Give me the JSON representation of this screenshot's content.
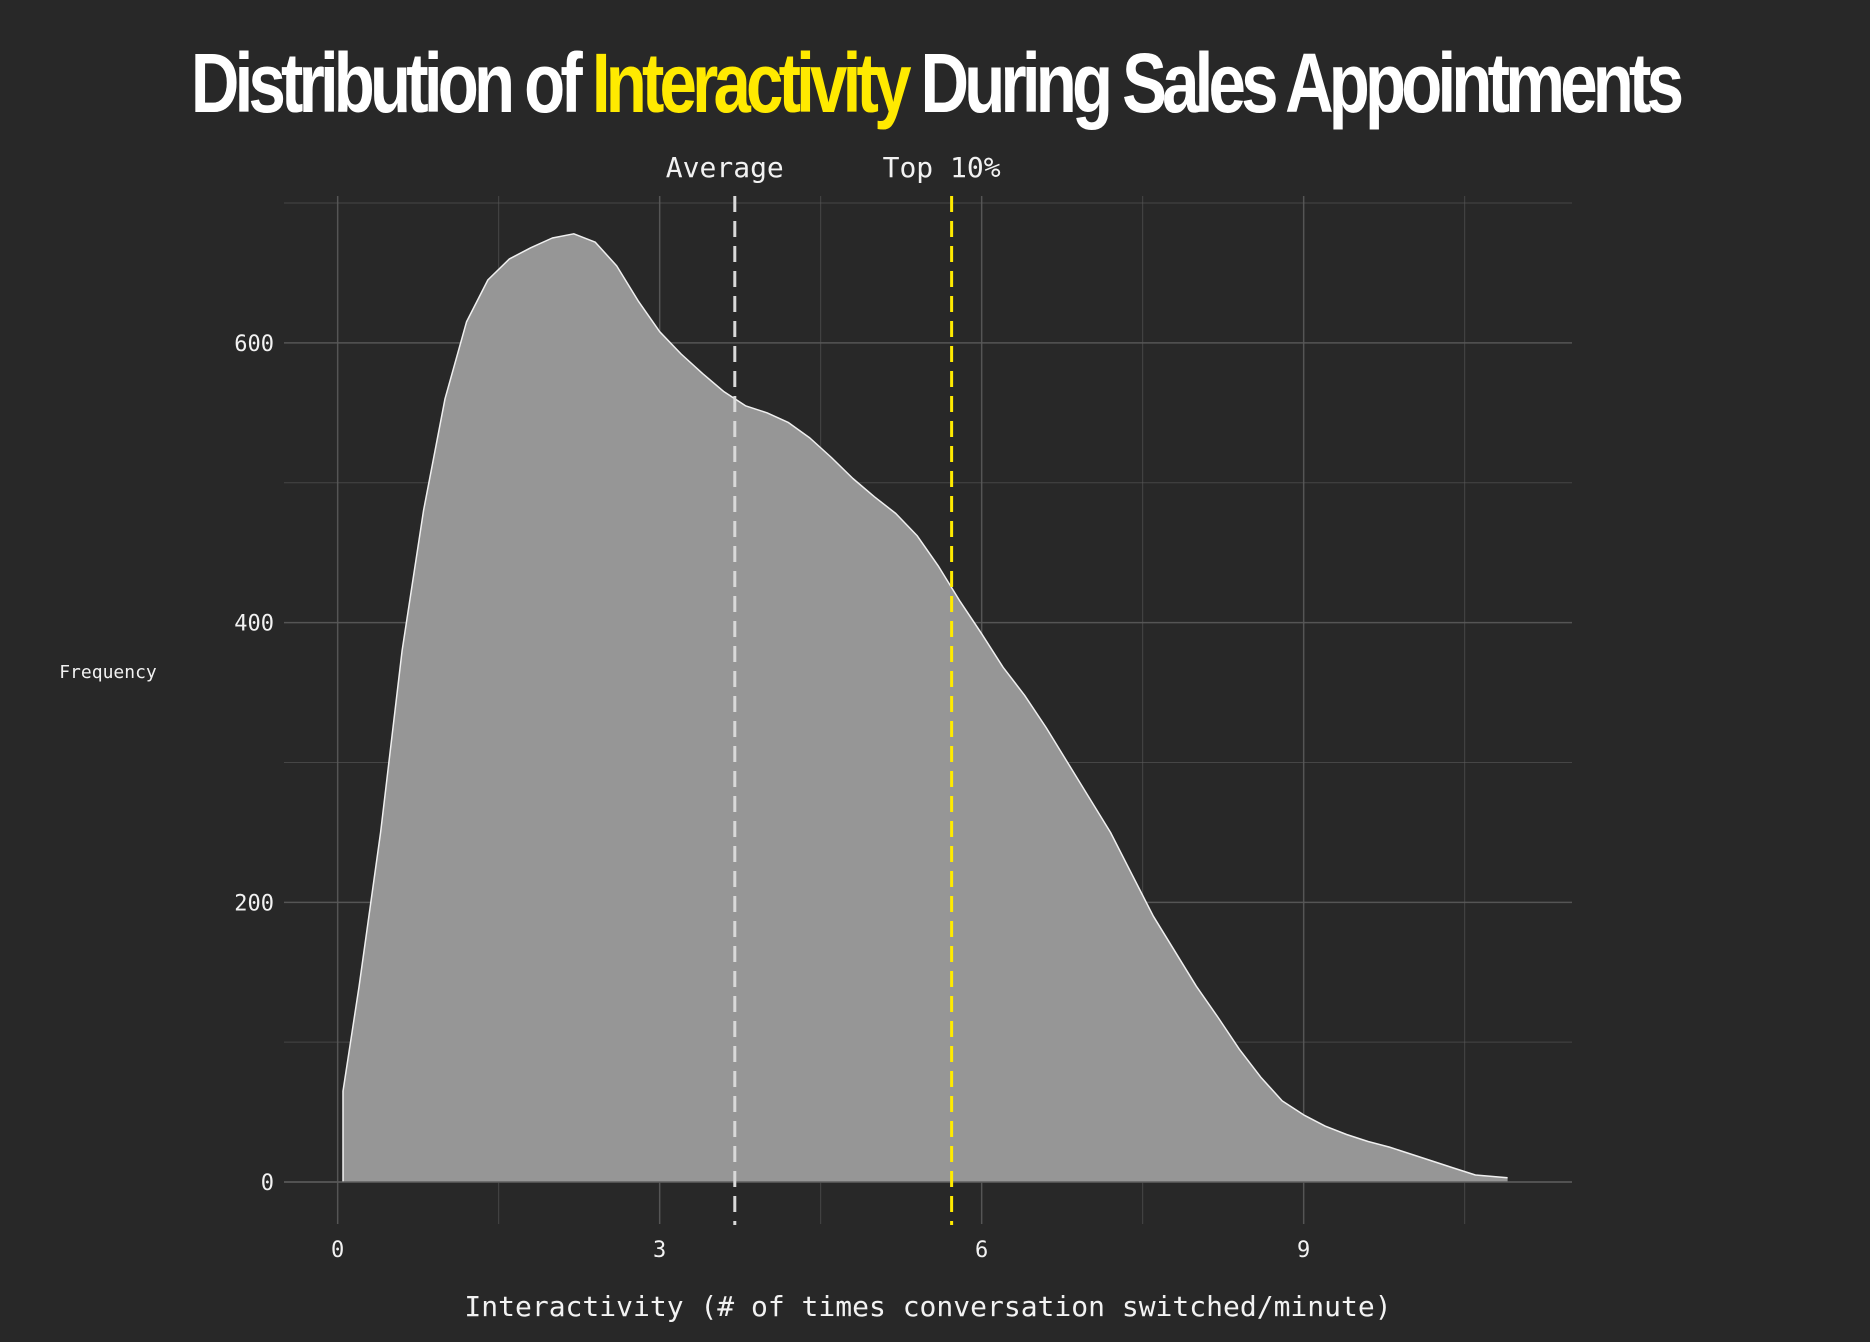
{
  "title": {
    "part1": "Distribution of ",
    "highlight": "Interactivity",
    "part2": " During Sales Appointments"
  },
  "colors": {
    "background": "#282828",
    "highlight": "#ffea00",
    "fill": "#969696",
    "outline": "#f0f0f0",
    "average_line": "#d9d9d9",
    "grid": "#5a5a5a"
  },
  "chart_data": {
    "type": "area",
    "xlabel": "Interactivity (# of times conversation switched/minute)",
    "ylabel": "Frequency",
    "xlim": [
      -0.5,
      11.5
    ],
    "ylim": [
      -30,
      705
    ],
    "xticks": [
      0,
      3,
      6,
      9
    ],
    "yticks": [
      0,
      200,
      400,
      600
    ],
    "grid": true,
    "x": [
      0.05,
      0.2,
      0.4,
      0.6,
      0.8,
      1.0,
      1.2,
      1.4,
      1.6,
      1.8,
      2.0,
      2.2,
      2.4,
      2.6,
      2.8,
      3.0,
      3.2,
      3.4,
      3.6,
      3.8,
      4.0,
      4.2,
      4.4,
      4.6,
      4.8,
      5.0,
      5.2,
      5.4,
      5.6,
      5.8,
      6.0,
      6.2,
      6.4,
      6.6,
      6.8,
      7.0,
      7.2,
      7.4,
      7.6,
      7.8,
      8.0,
      8.2,
      8.4,
      8.6,
      8.8,
      9.0,
      9.2,
      9.4,
      9.6,
      9.8,
      10.0,
      10.2,
      10.4,
      10.6,
      10.9
    ],
    "y": [
      65,
      140,
      250,
      380,
      480,
      560,
      615,
      645,
      660,
      668,
      675,
      678,
      672,
      655,
      630,
      608,
      592,
      578,
      565,
      555,
      550,
      543,
      532,
      518,
      503,
      490,
      478,
      462,
      440,
      415,
      392,
      368,
      348,
      325,
      300,
      275,
      250,
      220,
      190,
      165,
      140,
      118,
      95,
      75,
      58,
      48,
      40,
      34,
      29,
      25,
      20,
      15,
      10,
      5,
      3
    ],
    "reference_lines": [
      {
        "label": "Average",
        "x": 3.7,
        "color": "#d9d9d9"
      },
      {
        "label": "Top 10%",
        "x": 5.72,
        "color": "#ffea00"
      }
    ]
  }
}
